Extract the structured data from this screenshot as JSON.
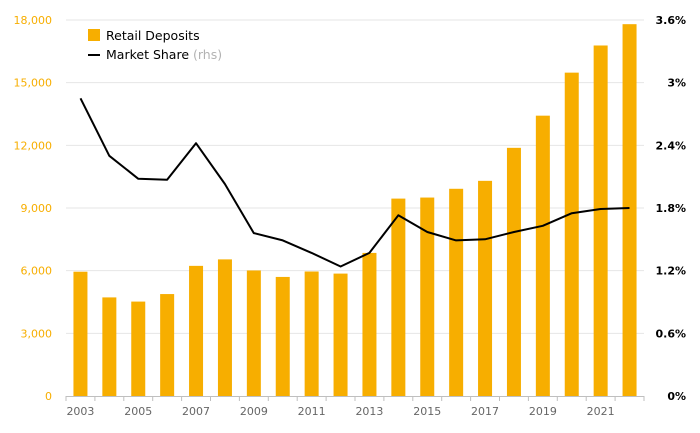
{
  "chart_data": {
    "type": "bar+line",
    "title": "",
    "xlabel": "",
    "ylabel": "",
    "years": [
      2003,
      2004,
      2005,
      2006,
      2007,
      2008,
      2009,
      2010,
      2011,
      2012,
      2013,
      2014,
      2015,
      2016,
      2017,
      2018,
      2019,
      2020,
      2021,
      2022
    ],
    "x_tick_labels": [
      "2003",
      "2005",
      "2007",
      "2009",
      "2011",
      "2013",
      "2015",
      "2017",
      "2019",
      "2021"
    ],
    "series": [
      {
        "name": "Retail Deposits",
        "type": "bar",
        "axis": "left",
        "color": "#F7AE00",
        "values": [
          5950,
          4720,
          4520,
          4880,
          6230,
          6540,
          6010,
          5700,
          5960,
          5860,
          6850,
          9450,
          9500,
          9920,
          10300,
          11880,
          13420,
          15480,
          16780,
          17800
        ]
      },
      {
        "name": "Market Share",
        "type": "line",
        "axis": "right",
        "color": "#000000",
        "values": [
          2.85,
          2.3,
          2.08,
          2.07,
          2.42,
          2.03,
          1.56,
          1.49,
          1.37,
          1.24,
          1.37,
          1.73,
          1.57,
          1.49,
          1.5,
          1.57,
          1.63,
          1.75,
          1.79,
          1.8
        ]
      }
    ],
    "legend": {
      "position": "top-left",
      "items": [
        {
          "label": "Retail Deposits",
          "suffix": ""
        },
        {
          "label": "Market Share",
          "suffix": "(rhs)"
        }
      ]
    },
    "y_left": {
      "min": 0,
      "max": 18000,
      "ticks": [
        0,
        3000,
        6000,
        9000,
        12000,
        15000,
        18000
      ],
      "tick_labels": [
        "0",
        "3,000",
        "6,000",
        "9,000",
        "12,000",
        "15,000",
        "18,000"
      ],
      "color": "#F7AE00"
    },
    "y_right": {
      "min": 0,
      "max": 3.6,
      "ticks": [
        0,
        0.6,
        1.2,
        1.8,
        2.4,
        3.0,
        3.6
      ],
      "tick_labels": [
        "0%",
        "0.6%",
        "1.2%",
        "1.8%",
        "2.4%",
        "3%",
        "3.6%"
      ],
      "color": "#000000"
    },
    "grid": true,
    "colors": {
      "bar": "#F7AE00",
      "line": "#000000",
      "grid": "#E6E6E6",
      "axis": "#BFBFBF",
      "x_tick_text": "#666666",
      "legend_suffix": "#B3B3B3"
    }
  }
}
